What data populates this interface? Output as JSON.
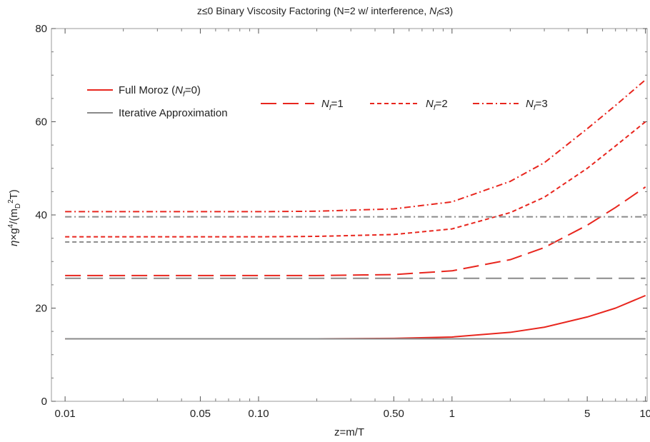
{
  "chart_data": {
    "type": "line",
    "title_prefix": "z≤0 Binary Viscosity Factoring (N=2 w/ interference, ",
    "title_nf": "N",
    "title_nf_sub": "f",
    "title_suffix": "≤3)",
    "xlabel": "z=m/T",
    "ylabel_parts": {
      "eta": "η",
      "times_g": "×g",
      "g_exp": "4",
      "slash_m": "/(m",
      "m_sub": "D",
      "m_exp": "2",
      "tail": "T)"
    },
    "x_scale": "log",
    "xlim": [
      0.0085,
      10.2
    ],
    "ylim": [
      0,
      80
    ],
    "x_ticks": [
      0.01,
      0.05,
      0.1,
      0.5,
      1,
      5,
      10
    ],
    "x_tick_labels": [
      "0.01",
      "0.05",
      "0.10",
      "0.50",
      "1",
      "5",
      "10"
    ],
    "y_ticks": [
      0,
      20,
      40,
      60,
      80
    ],
    "y_tick_labels": [
      "0",
      "20",
      "40",
      "60",
      "80"
    ],
    "legend": {
      "full_moroz_prefix": "Full Moroz (",
      "full_moroz_nf": "N",
      "full_moroz_sub": "f",
      "full_moroz_suffix": "=0)",
      "iterative": "Iterative Approximation",
      "nf_symbol": "N",
      "nf_sub": "f",
      "nf1": "=1",
      "nf2": "=2",
      "nf3": "=3"
    },
    "x": [
      0.01,
      0.05,
      0.1,
      0.2,
      0.5,
      1,
      2,
      3,
      5,
      7,
      10
    ],
    "series": [
      {
        "key": "full_moroz_nf0",
        "color": "#e8261e",
        "dash": "none",
        "values": [
          13.4,
          13.4,
          13.4,
          13.4,
          13.5,
          13.8,
          14.8,
          15.9,
          18.1,
          20.0,
          22.7
        ]
      },
      {
        "key": "full_moroz_nf1",
        "color": "#e8261e",
        "dash": "22,9",
        "values": [
          27.0,
          27.0,
          27.0,
          27.0,
          27.2,
          28.0,
          30.4,
          33.0,
          37.8,
          41.6,
          46.0
        ]
      },
      {
        "key": "full_moroz_nf2",
        "color": "#e8261e",
        "dash": "6,4",
        "values": [
          35.3,
          35.3,
          35.3,
          35.4,
          35.8,
          37.0,
          40.5,
          43.8,
          50.0,
          54.8,
          60.0
        ]
      },
      {
        "key": "full_moroz_nf3",
        "color": "#e8261e",
        "dash": "9,4,2,4",
        "values": [
          40.7,
          40.7,
          40.7,
          40.8,
          41.3,
          42.8,
          47.2,
          51.2,
          58.5,
          63.5,
          69.0
        ]
      },
      {
        "key": "iterative_nf0",
        "color": "#8a8a8a",
        "dash": "none",
        "values": [
          13.4,
          13.4,
          13.4,
          13.4,
          13.4,
          13.4,
          13.4,
          13.4,
          13.4,
          13.4,
          13.4
        ]
      },
      {
        "key": "iterative_nf1",
        "color": "#8a8a8a",
        "dash": "22,9",
        "values": [
          26.4,
          26.4,
          26.4,
          26.4,
          26.4,
          26.4,
          26.4,
          26.4,
          26.4,
          26.4,
          26.4
        ]
      },
      {
        "key": "iterative_nf2",
        "color": "#8a8a8a",
        "dash": "6,4",
        "values": [
          34.2,
          34.2,
          34.2,
          34.2,
          34.2,
          34.2,
          34.2,
          34.2,
          34.2,
          34.2,
          34.2
        ]
      },
      {
        "key": "iterative_nf3",
        "color": "#8a8a8a",
        "dash": "9,4,2,4",
        "values": [
          39.6,
          39.6,
          39.6,
          39.6,
          39.6,
          39.6,
          39.6,
          39.6,
          39.6,
          39.6,
          39.6
        ]
      }
    ],
    "grid": false,
    "legend_placement": "top-left"
  }
}
